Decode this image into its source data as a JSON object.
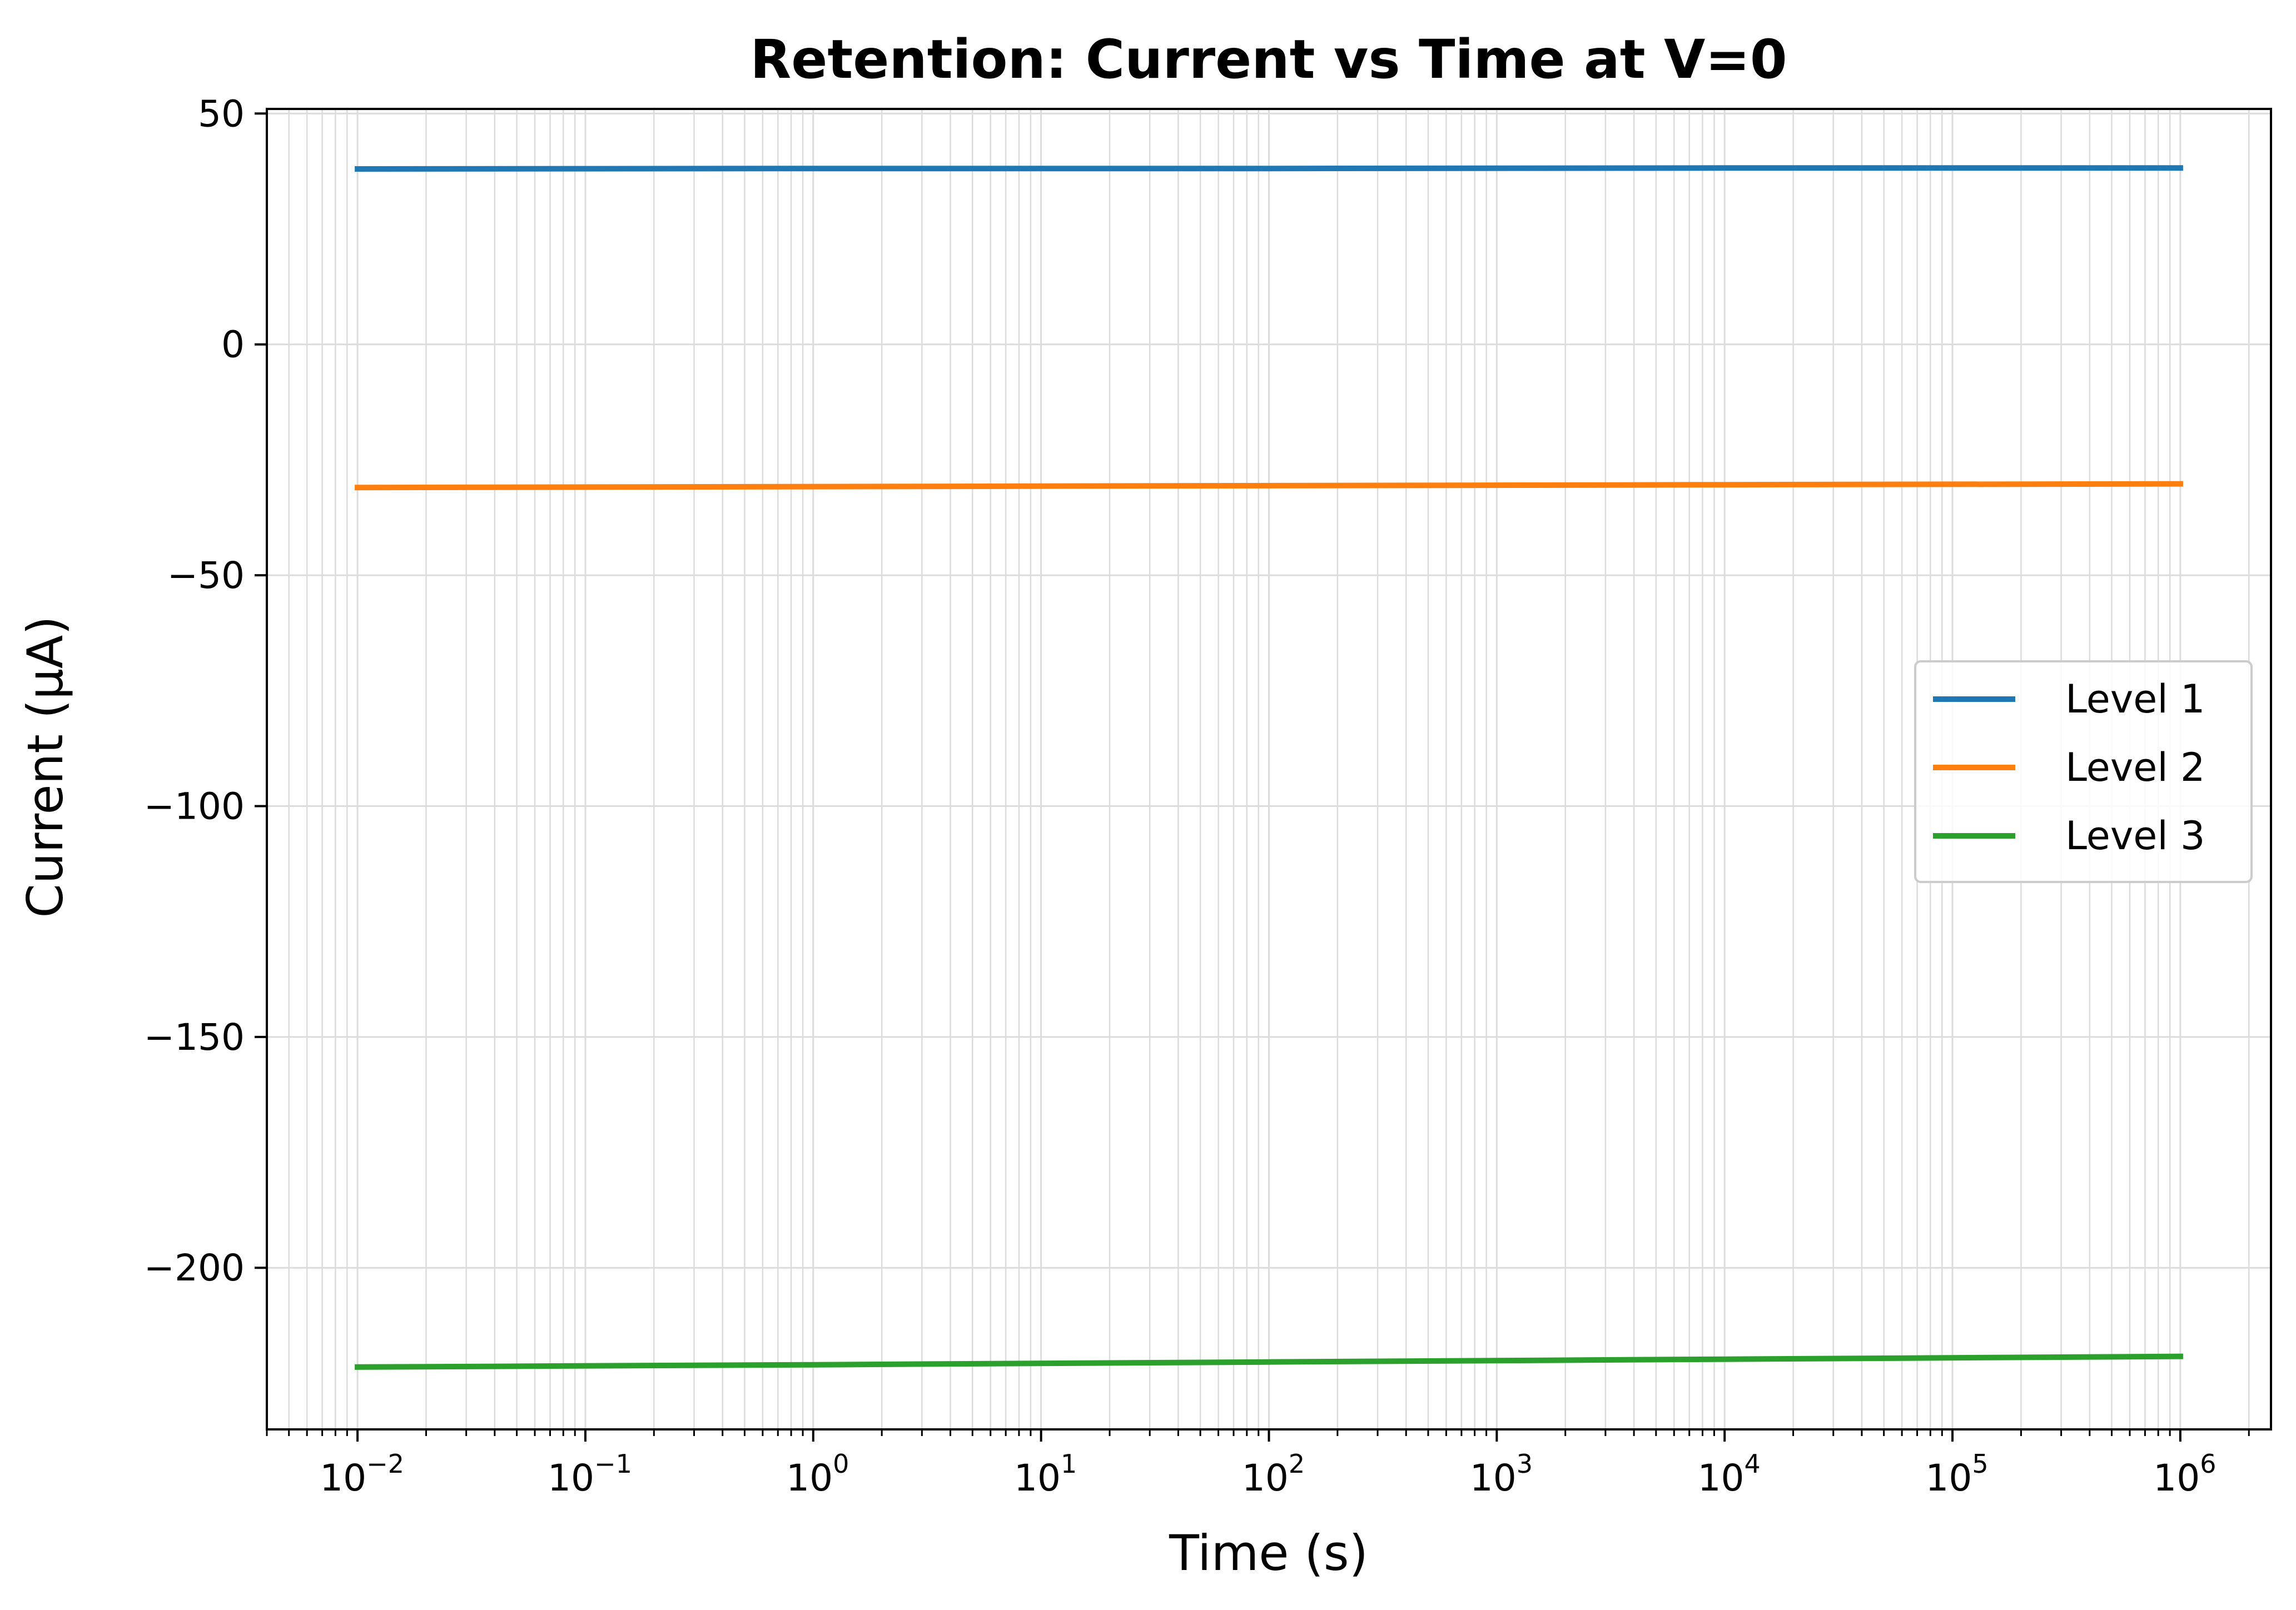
{
  "chart_data": {
    "type": "line",
    "title": "Retention: Current vs Time at V=0",
    "xlabel": "Time (s)",
    "ylabel": "Current (μA)",
    "x_scale": "log",
    "xlim": [
      0.004,
      2500000
    ],
    "ylim": [
      -235,
      51
    ],
    "grid": true,
    "legend_position": "center-right",
    "x_ticks": [
      {
        "base": "10",
        "exp": "−2",
        "value": 0.01
      },
      {
        "base": "10",
        "exp": "−1",
        "value": 0.1
      },
      {
        "base": "10",
        "exp": "0",
        "value": 1
      },
      {
        "base": "10",
        "exp": "1",
        "value": 10
      },
      {
        "base": "10",
        "exp": "2",
        "value": 100
      },
      {
        "base": "10",
        "exp": "3",
        "value": 1000
      },
      {
        "base": "10",
        "exp": "4",
        "value": 10000
      },
      {
        "base": "10",
        "exp": "5",
        "value": 100000
      },
      {
        "base": "10",
        "exp": "6",
        "value": 1000000
      }
    ],
    "y_ticks": [
      {
        "label": "50",
        "value": 50
      },
      {
        "label": "0",
        "value": 0
      },
      {
        "label": "−50",
        "value": -50
      },
      {
        "label": "−100",
        "value": -100
      },
      {
        "label": "−150",
        "value": -150
      },
      {
        "label": "−200",
        "value": -200
      }
    ],
    "series": [
      {
        "name": "Level 1",
        "color": "#1f77b4",
        "x": [
          0.01,
          1,
          100,
          10000,
          1000000
        ],
        "y": [
          38.0,
          38.1,
          38.1,
          38.2,
          38.2
        ]
      },
      {
        "name": "Level 2",
        "color": "#ff7f0e",
        "x": [
          0.01,
          1,
          100,
          10000,
          1000000
        ],
        "y": [
          -31.0,
          -30.8,
          -30.6,
          -30.4,
          -30.2
        ]
      },
      {
        "name": "Level 3",
        "color": "#2ca02c",
        "x": [
          0.01,
          1,
          100,
          10000,
          1000000
        ],
        "y": [
          -221.5,
          -221.0,
          -220.4,
          -219.8,
          -219.2
        ]
      }
    ]
  }
}
